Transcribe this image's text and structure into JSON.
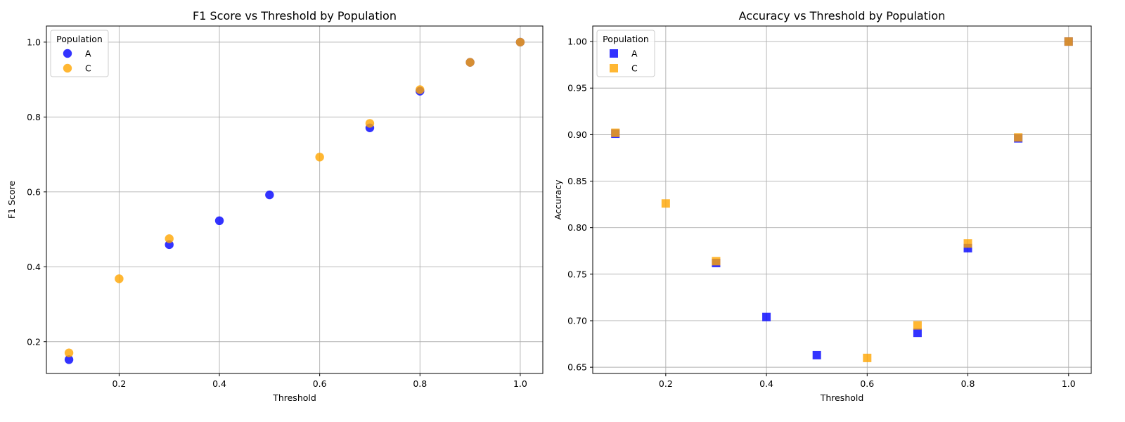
{
  "chart_data": [
    {
      "type": "scatter",
      "title": "F1 Score vs Threshold by Population",
      "xlabel": "Threshold",
      "ylabel": "F1 Score",
      "xlim": [
        0.055,
        1.045
      ],
      "ylim": [
        0.115,
        1.043
      ],
      "xticks": [
        "0.2",
        "0.4",
        "0.6",
        "0.8",
        "1.0"
      ],
      "yticks": [
        "0.2",
        "0.4",
        "0.6",
        "0.8",
        "1.0"
      ],
      "grid": true,
      "marker": "circle",
      "legend": {
        "title": "Population",
        "placement": "upper-left"
      },
      "series": [
        {
          "name": "A",
          "color": "#0000ff",
          "x": [
            0.1,
            0.3,
            0.4,
            0.5,
            0.7,
            0.8,
            0.9,
            1.0
          ],
          "y": [
            0.152,
            0.459,
            0.523,
            0.592,
            0.771,
            0.869,
            0.946,
            1.0
          ]
        },
        {
          "name": "C",
          "color": "#ffa500",
          "x": [
            0.1,
            0.2,
            0.3,
            0.6,
            0.7,
            0.8,
            0.9,
            1.0
          ],
          "y": [
            0.17,
            0.368,
            0.475,
            0.693,
            0.783,
            0.873,
            0.946,
            1.0
          ]
        }
      ]
    },
    {
      "type": "scatter",
      "title": "Accuracy vs Threshold by Population",
      "xlabel": "Threshold",
      "ylabel": "Accuracy",
      "xlim": [
        0.055,
        1.045
      ],
      "ylim": [
        0.6433,
        1.0167
      ],
      "xticks": [
        "0.2",
        "0.4",
        "0.6",
        "0.8",
        "1.0"
      ],
      "yticks": [
        "0.65",
        "0.70",
        "0.75",
        "0.80",
        "0.85",
        "0.90",
        "0.95",
        "1.00"
      ],
      "grid": true,
      "marker": "square",
      "legend": {
        "title": "Population",
        "placement": "upper-left"
      },
      "series": [
        {
          "name": "A",
          "color": "#0000ff",
          "x": [
            0.1,
            0.3,
            0.4,
            0.5,
            0.7,
            0.8,
            0.9,
            1.0
          ],
          "y": [
            0.901,
            0.762,
            0.704,
            0.663,
            0.687,
            0.778,
            0.896,
            1.0
          ]
        },
        {
          "name": "C",
          "color": "#ffa500",
          "x": [
            0.1,
            0.2,
            0.3,
            0.6,
            0.7,
            0.8,
            0.9,
            1.0
          ],
          "y": [
            0.902,
            0.826,
            0.764,
            0.66,
            0.695,
            0.783,
            0.897,
            1.0
          ]
        }
      ]
    }
  ]
}
